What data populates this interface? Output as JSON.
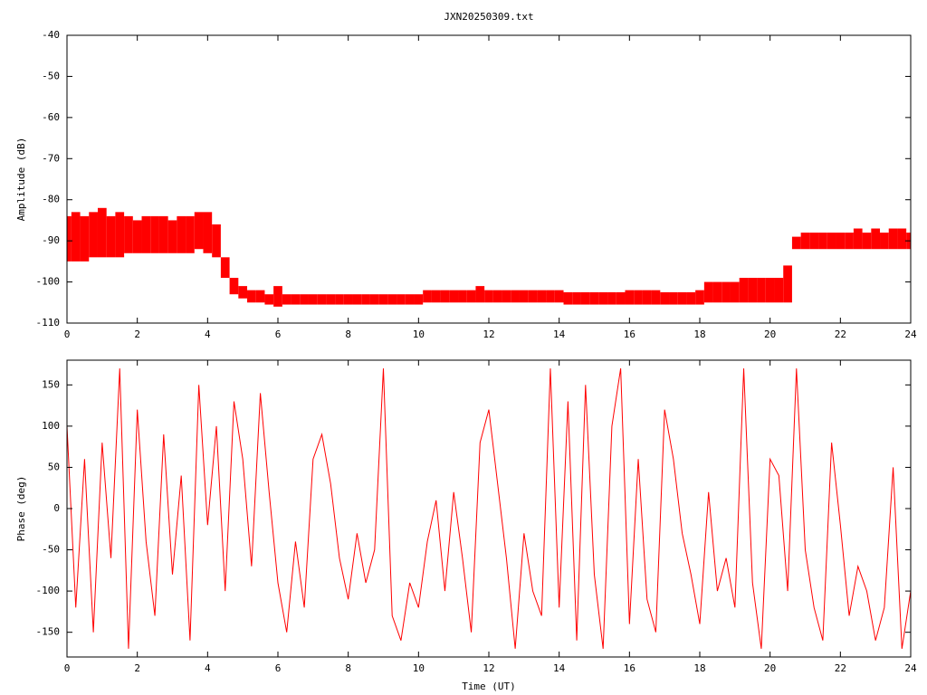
{
  "chart_data": [
    {
      "type": "band",
      "title": "JXN20250309.txt",
      "ylabel": "Amplitude (dB)",
      "color": "#ff0000",
      "x": [
        0,
        0.25,
        0.5,
        0.75,
        1,
        1.25,
        1.5,
        1.75,
        2,
        2.25,
        2.5,
        2.75,
        3,
        3.25,
        3.5,
        3.75,
        4,
        4.25,
        4.5,
        4.75,
        5,
        5.25,
        5.5,
        5.75,
        6,
        6.25,
        6.5,
        6.75,
        7,
        7.25,
        7.5,
        7.75,
        8,
        8.25,
        8.5,
        8.75,
        9,
        9.25,
        9.5,
        9.75,
        10,
        10.25,
        10.5,
        10.75,
        11,
        11.25,
        11.5,
        11.75,
        12,
        12.25,
        12.5,
        12.75,
        13,
        13.25,
        13.5,
        13.75,
        14,
        14.25,
        14.5,
        14.75,
        15,
        15.25,
        15.5,
        15.75,
        16,
        16.25,
        16.5,
        16.75,
        17,
        17.25,
        17.5,
        17.75,
        18,
        18.25,
        18.5,
        18.75,
        19,
        19.25,
        19.5,
        19.75,
        20,
        20.25,
        20.5,
        20.75,
        21,
        21.25,
        21.5,
        21.75,
        22,
        22.25,
        22.5,
        22.75,
        23,
        23.25,
        23.5,
        23.75,
        24
      ],
      "high": [
        -84,
        -83,
        -84,
        -83,
        -82,
        -84,
        -83,
        -84,
        -85,
        -84,
        -84,
        -84,
        -85,
        -84,
        -84,
        -83,
        -83,
        -86,
        -94,
        -99,
        -101,
        -102,
        -102,
        -103,
        -101,
        -103,
        -103,
        -103,
        -103,
        -103,
        -103,
        -103,
        -103,
        -103,
        -103,
        -103,
        -103,
        -103,
        -103,
        -103,
        -103,
        -102,
        -102,
        -102,
        -102,
        -102,
        -102,
        -101,
        -102,
        -102,
        -102,
        -102,
        -102,
        -102,
        -102,
        -102,
        -102,
        -102.5,
        -102.5,
        -102.5,
        -102.5,
        -102.5,
        -102.5,
        -102.5,
        -102,
        -102,
        -102,
        -102,
        -102.5,
        -102.5,
        -102.5,
        -102.5,
        -102,
        -100,
        -100,
        -100,
        -100,
        -99,
        -99,
        -99,
        -99,
        -99,
        -96,
        -89,
        -88,
        -88,
        -88,
        -88,
        -88,
        -88,
        -87,
        -88,
        -87,
        -88,
        -87,
        -87,
        -88
      ],
      "low": [
        -95,
        -95,
        -95,
        -94,
        -94,
        -94,
        -94,
        -93,
        -93,
        -93,
        -93,
        -93,
        -93,
        -93,
        -93,
        -92,
        -93,
        -94,
        -99,
        -103,
        -104,
        -105,
        -105,
        -105.5,
        -106,
        -105.5,
        -105.5,
        -105.5,
        -105.5,
        -105.5,
        -105.5,
        -105.5,
        -105.5,
        -105.5,
        -105.5,
        -105.5,
        -105.5,
        -105.5,
        -105.5,
        -105.5,
        -105.5,
        -105,
        -105,
        -105,
        -105,
        -105,
        -105,
        -105,
        -105,
        -105,
        -105,
        -105,
        -105,
        -105,
        -105,
        -105,
        -105,
        -105.5,
        -105.5,
        -105.5,
        -105.5,
        -105.5,
        -105.5,
        -105.5,
        -105.5,
        -105.5,
        -105.5,
        -105.5,
        -105.5,
        -105.5,
        -105.5,
        -105.5,
        -105.5,
        -105,
        -105,
        -105,
        -105,
        -105,
        -105,
        -105,
        -105,
        -105,
        -105,
        -92,
        -92,
        -92,
        -92,
        -92,
        -92,
        -92,
        -92,
        -92,
        -92,
        -92,
        -92,
        -92,
        -92
      ],
      "xlim": [
        0,
        24
      ],
      "xticks": [
        0,
        2,
        4,
        6,
        8,
        10,
        12,
        14,
        16,
        18,
        20,
        22,
        24
      ],
      "ylim": [
        -110,
        -40
      ],
      "yticks": [
        -110,
        -100,
        -90,
        -80,
        -70,
        -60,
        -50,
        -40
      ]
    },
    {
      "type": "line",
      "ylabel": "Phase (deg)",
      "xlabel": "Time (UT)",
      "color": "#ff0000",
      "x": [
        0,
        0.25,
        0.5,
        0.75,
        1,
        1.25,
        1.5,
        1.75,
        2,
        2.25,
        2.5,
        2.75,
        3,
        3.25,
        3.5,
        3.75,
        4,
        4.25,
        4.5,
        4.75,
        5,
        5.25,
        5.5,
        5.75,
        6,
        6.25,
        6.5,
        6.75,
        7,
        7.25,
        7.5,
        7.75,
        8,
        8.25,
        8.5,
        8.75,
        9,
        9.25,
        9.5,
        9.75,
        10,
        10.25,
        10.5,
        10.75,
        11,
        11.25,
        11.5,
        11.75,
        12,
        12.25,
        12.5,
        12.75,
        13,
        13.25,
        13.5,
        13.75,
        14,
        14.25,
        14.5,
        14.75,
        15,
        15.25,
        15.5,
        15.75,
        16,
        16.25,
        16.5,
        16.75,
        17,
        17.25,
        17.5,
        17.75,
        18,
        18.25,
        18.5,
        18.75,
        19,
        19.25,
        19.5,
        19.75,
        20,
        20.25,
        20.5,
        20.75,
        21,
        21.25,
        21.5,
        21.75,
        22,
        22.25,
        22.5,
        22.75,
        23,
        23.25,
        23.5,
        23.75,
        24
      ],
      "values": [
        100,
        -120,
        60,
        -150,
        80,
        -60,
        170,
        -170,
        120,
        -40,
        -130,
        90,
        -80,
        40,
        -160,
        150,
        -20,
        100,
        -100,
        130,
        60,
        -70,
        140,
        20,
        -90,
        -150,
        -40,
        -120,
        60,
        90,
        30,
        -60,
        -110,
        -30,
        -90,
        -50,
        170,
        -130,
        -160,
        -90,
        -120,
        -40,
        10,
        -100,
        20,
        -60,
        -150,
        80,
        120,
        30,
        -60,
        -170,
        -30,
        -100,
        -130,
        170,
        -120,
        130,
        -160,
        150,
        -80,
        -170,
        100,
        170,
        -140,
        60,
        -110,
        -150,
        120,
        60,
        -30,
        -80,
        -140,
        20,
        -100,
        -60,
        -120,
        170,
        -90,
        -170,
        60,
        40,
        -100,
        170,
        -50,
        -120,
        -160,
        80,
        -20,
        -130,
        -70,
        -100,
        -160,
        -120,
        50,
        -170,
        -100
      ],
      "xlim": [
        0,
        24
      ],
      "xticks": [
        0,
        2,
        4,
        6,
        8,
        10,
        12,
        14,
        16,
        18,
        20,
        22,
        24
      ],
      "ylim": [
        -180,
        180
      ],
      "yticks": [
        -150,
        -100,
        -50,
        0,
        50,
        100,
        150
      ]
    }
  ]
}
